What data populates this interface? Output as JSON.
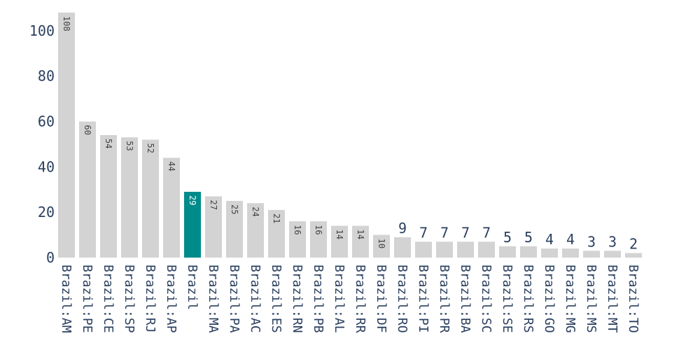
{
  "chart_data": {
    "type": "bar",
    "categories": [
      "Brazil:AM",
      "Brazil:PE",
      "Brazil:CE",
      "Brazil:SP",
      "Brazil:RJ",
      "Brazil:AP",
      "Brazil",
      "Brazil:MA",
      "Brazil:PA",
      "Brazil:AC",
      "Brazil:ES",
      "Brazil:RN",
      "Brazil:PB",
      "Brazil:AL",
      "Brazil:RR",
      "Brazil:DF",
      "Brazil:RO",
      "Brazil:PI",
      "Brazil:PR",
      "Brazil:BA",
      "Brazil:SC",
      "Brazil:SE",
      "Brazil:RS",
      "Brazil:GO",
      "Brazil:MG",
      "Brazil:MS",
      "Brazil:MT",
      "Brazil:TO"
    ],
    "values": [
      108,
      60,
      54,
      53,
      52,
      44,
      29,
      27,
      25,
      24,
      21,
      16,
      16,
      14,
      14,
      10,
      9,
      7,
      7,
      7,
      7,
      5,
      5,
      4,
      4,
      3,
      3,
      2
    ],
    "highlight_index": 6,
    "colors": {
      "bar": "#d3d3d3",
      "highlight": "#008b8b",
      "text": "#2a3f5f"
    },
    "yticks": [
      0,
      20,
      40,
      60,
      80,
      100
    ],
    "ylim": [
      0,
      108
    ],
    "grid": false,
    "legend": "none",
    "title": "",
    "xlabel": "",
    "ylabel": ""
  }
}
